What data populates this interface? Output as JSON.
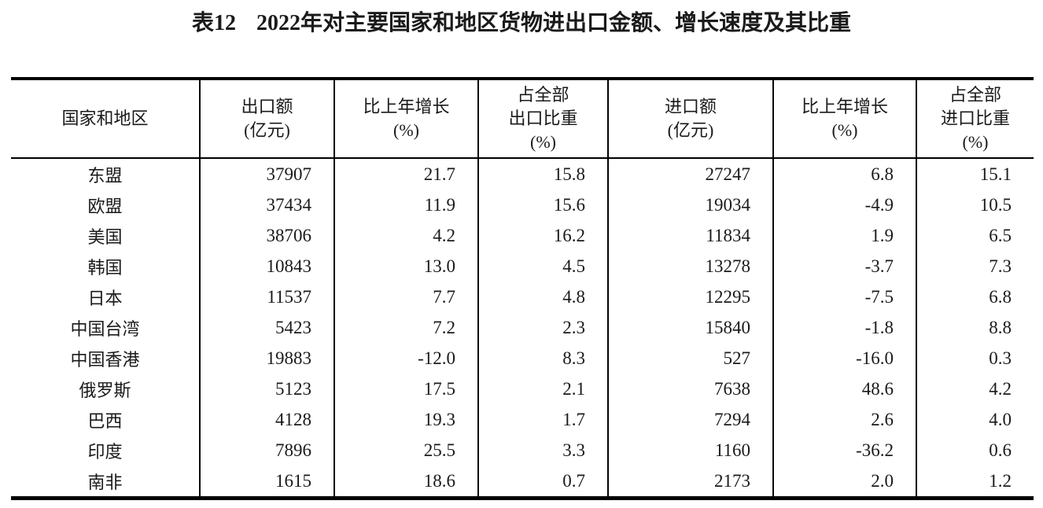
{
  "colors": {
    "background": "#ffffff",
    "text": "#1a1a1a",
    "rule": "#000000"
  },
  "title": {
    "label": "表12",
    "text": "2022年对主要国家和地区货物进出口金额、增长速度及其比重"
  },
  "table": {
    "columns": [
      {
        "lines": [
          "国家和地区"
        ]
      },
      {
        "lines": [
          "出口额",
          "(亿元)"
        ]
      },
      {
        "lines": [
          "比上年增长",
          "(%)"
        ]
      },
      {
        "lines": [
          "占全部",
          "出口比重",
          "(%)"
        ]
      },
      {
        "lines": [
          "进口额",
          "(亿元)"
        ]
      },
      {
        "lines": [
          "比上年增长",
          "(%)"
        ]
      },
      {
        "lines": [
          "占全部",
          "进口比重",
          "(%)"
        ]
      }
    ],
    "rows": [
      {
        "cells": [
          "东盟",
          "37907",
          "21.7",
          "15.8",
          "27247",
          "6.8",
          "15.1"
        ]
      },
      {
        "cells": [
          "欧盟",
          "37434",
          "11.9",
          "15.6",
          "19034",
          "-4.9",
          "10.5"
        ]
      },
      {
        "cells": [
          "美国",
          "38706",
          "4.2",
          "16.2",
          "11834",
          "1.9",
          "6.5"
        ]
      },
      {
        "cells": [
          "韩国",
          "10843",
          "13.0",
          "4.5",
          "13278",
          "-3.7",
          "7.3"
        ]
      },
      {
        "cells": [
          "日本",
          "11537",
          "7.7",
          "4.8",
          "12295",
          "-7.5",
          "6.8"
        ]
      },
      {
        "cells": [
          "中国台湾",
          "5423",
          "7.2",
          "2.3",
          "15840",
          "-1.8",
          "8.8"
        ]
      },
      {
        "cells": [
          "中国香港",
          "19883",
          "-12.0",
          "8.3",
          "527",
          "-16.0",
          "0.3"
        ]
      },
      {
        "cells": [
          "俄罗斯",
          "5123",
          "17.5",
          "2.1",
          "7638",
          "48.6",
          "4.2"
        ]
      },
      {
        "cells": [
          "巴西",
          "4128",
          "19.3",
          "1.7",
          "7294",
          "2.6",
          "4.0"
        ]
      },
      {
        "cells": [
          "印度",
          "7896",
          "25.5",
          "3.3",
          "1160",
          "-36.2",
          "0.6"
        ]
      },
      {
        "cells": [
          "南非",
          "1615",
          "18.6",
          "0.7",
          "2173",
          "2.0",
          "1.2"
        ]
      }
    ]
  }
}
